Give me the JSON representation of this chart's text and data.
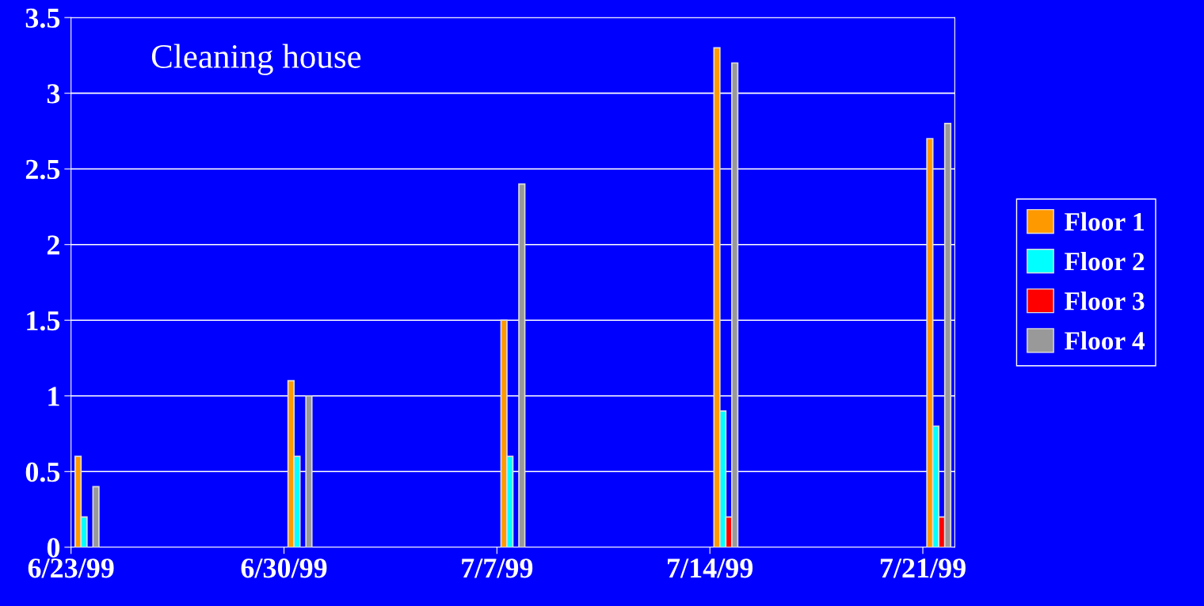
{
  "chart_data": {
    "type": "bar",
    "title": "Cleaning house",
    "categories": [
      "6/23/99",
      "6/30/99",
      "7/7/99",
      "7/14/99",
      "7/21/99"
    ],
    "series": [
      {
        "name": "Floor 1",
        "color": "#ff9900",
        "values": [
          0.6,
          1.1,
          1.5,
          3.3,
          2.7
        ]
      },
      {
        "name": "Floor 2",
        "color": "#00ffff",
        "values": [
          0.2,
          0.6,
          0.6,
          0.9,
          0.8
        ]
      },
      {
        "name": "Floor 3",
        "color": "#ff0000",
        "values": [
          null,
          null,
          null,
          0.2,
          0.2
        ]
      },
      {
        "name": "Floor 4",
        "color": "#999999",
        "values": [
          0.4,
          1.0,
          2.4,
          3.2,
          2.8
        ]
      }
    ],
    "ylim": [
      0,
      3.5
    ],
    "yticks": [
      0,
      0.5,
      1,
      1.5,
      2,
      2.5,
      3,
      3.5
    ],
    "grid": "y",
    "legend": "right"
  }
}
